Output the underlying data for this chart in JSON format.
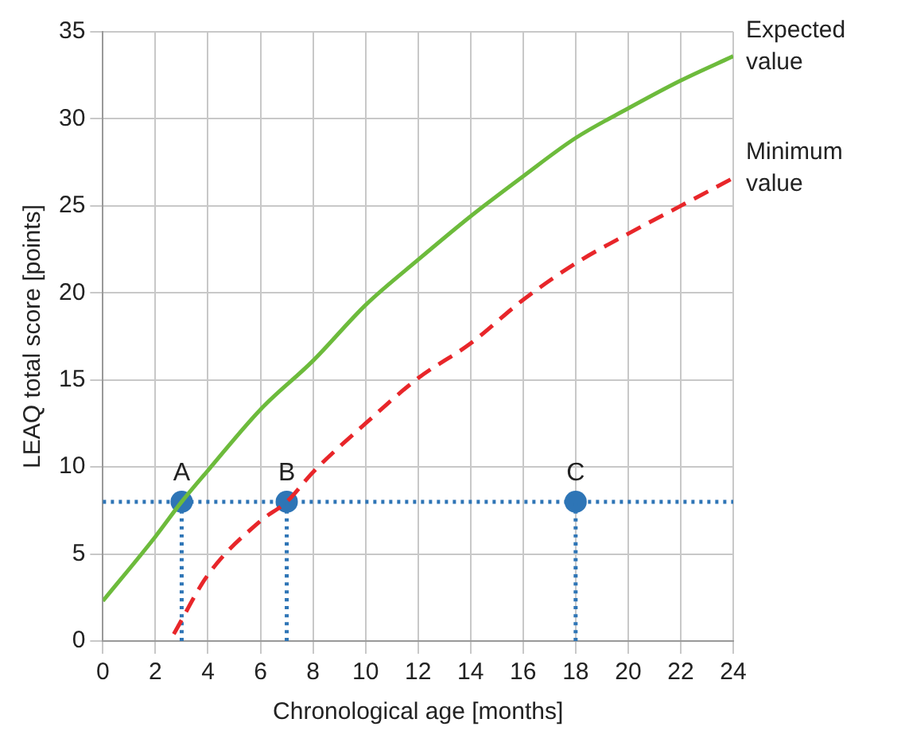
{
  "chart_data": {
    "type": "line",
    "xlabel": "Chronological age [months]",
    "ylabel": "LEAQ total score [points]",
    "xlim": [
      0,
      24
    ],
    "xticks": [
      0,
      2,
      4,
      6,
      8,
      10,
      12,
      14,
      16,
      18,
      20,
      22,
      24
    ],
    "ylim": [
      0,
      35
    ],
    "yticks": [
      0,
      5,
      10,
      15,
      20,
      25,
      30,
      35
    ],
    "grid": true,
    "legend": false,
    "series": [
      {
        "name": "Expected value",
        "color": "#6dbb3c",
        "line_style": "solid",
        "marker": "none",
        "x": [
          0,
          2,
          3,
          4,
          6,
          8,
          10,
          12,
          14,
          16,
          18,
          20,
          22,
          24
        ],
        "values": [
          2.3,
          6.0,
          8.0,
          9.8,
          13.3,
          16.1,
          19.3,
          21.9,
          24.4,
          26.7,
          28.9,
          30.6,
          32.2,
          33.6
        ]
      },
      {
        "name": "Minimum value",
        "color": "#e8262a",
        "line_style": "dashed",
        "marker": "none",
        "x": [
          2.7,
          4,
          6,
          7,
          8,
          10,
          12,
          14,
          16,
          18,
          20,
          22,
          24
        ],
        "values": [
          0.4,
          3.8,
          6.9,
          8.0,
          9.7,
          12.5,
          15.1,
          17.1,
          19.6,
          21.7,
          23.4,
          25.0,
          26.6
        ]
      },
      {
        "type": "line",
        "color": "#2e75b6",
        "line_style": "dotted",
        "marker": "none",
        "x": [
          3,
          3
        ],
        "values": [
          0,
          8
        ]
      },
      {
        "type": "line",
        "color": "#2e75b6",
        "line_style": "dotted",
        "marker": "none",
        "x": [
          7,
          7
        ],
        "values": [
          0,
          8
        ]
      },
      {
        "type": "line",
        "color": "#2e75b6",
        "line_style": "dotted",
        "marker": "none",
        "x": [
          18,
          18
        ],
        "values": [
          0,
          8
        ]
      },
      {
        "type": "scatter",
        "color": "#2e75b6",
        "marker": "circle",
        "x": [
          3,
          7,
          18
        ],
        "values": [
          8,
          8,
          8
        ]
      }
    ],
    "ref_lines": [
      {
        "axis": "y",
        "value": 8,
        "color": "#2e75b6",
        "line_style": "dotted"
      }
    ],
    "annotations": [
      {
        "text": "A",
        "x": 3,
        "y": 8
      },
      {
        "text": "B",
        "x": 7,
        "y": 8
      },
      {
        "text": "C",
        "x": 18,
        "y": 8
      }
    ]
  }
}
